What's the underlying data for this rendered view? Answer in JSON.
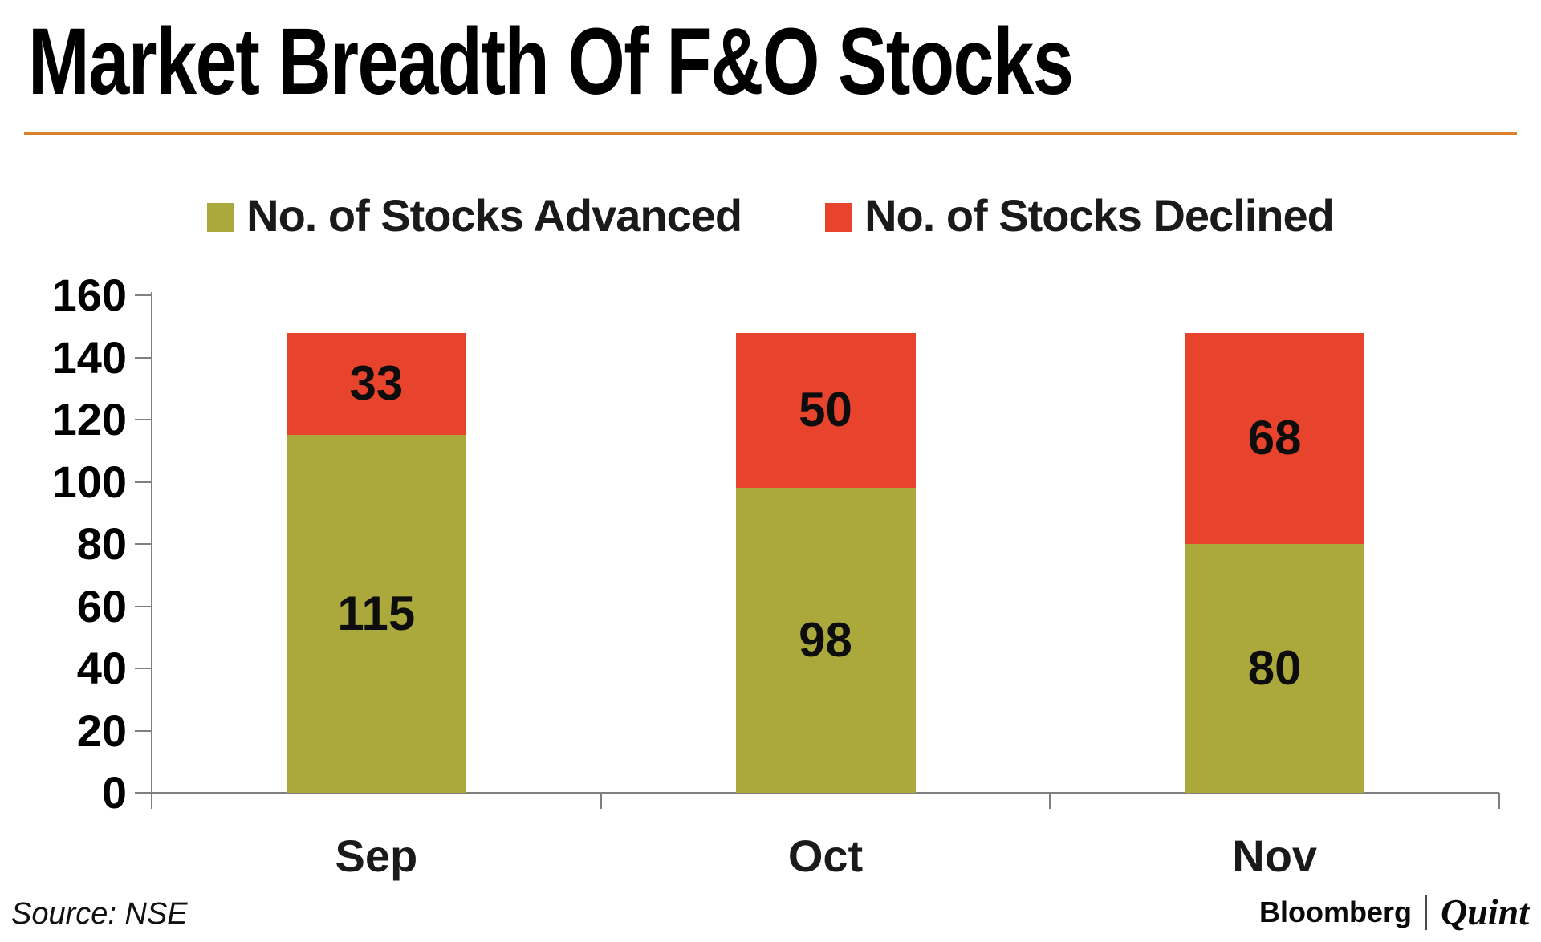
{
  "title": "Market Breadth Of F&O Stocks",
  "accent_rule_color": "#D9822B",
  "axis_color": "#7f7f7f",
  "legend": [
    {
      "label": "No. of Stocks Advanced",
      "color": "#ABA93C"
    },
    {
      "label": "No. of Stocks Declined",
      "color": "#E8432C"
    }
  ],
  "chart_data": {
    "type": "bar",
    "stacked": true,
    "title": "Market Breadth Of F&O Stocks",
    "categories": [
      "Sep",
      "Oct",
      "Nov"
    ],
    "series": [
      {
        "name": "No. of Stocks Advanced",
        "color": "#ABA93C",
        "values": [
          115,
          98,
          80
        ]
      },
      {
        "name": "No. of Stocks Declined",
        "color": "#E8432C",
        "values": [
          33,
          50,
          68
        ]
      }
    ],
    "totals": [
      148,
      148,
      148
    ],
    "xlabel": "",
    "ylabel": "",
    "ylim": [
      0,
      160
    ],
    "ytick_step": 20,
    "yticks": [
      0,
      20,
      40,
      60,
      80,
      100,
      120,
      140,
      160
    ],
    "grid": false,
    "legend_position": "top",
    "value_labels": "inside-center"
  },
  "footer": {
    "source": "Source: NSE",
    "brand": {
      "bloomberg": "Bloomberg",
      "quint": "Quint"
    }
  }
}
